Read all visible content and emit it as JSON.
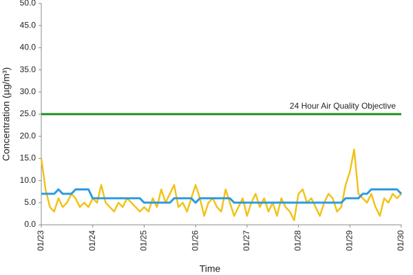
{
  "chart_data": {
    "type": "line",
    "x_label": "Time",
    "y_label": "Concentration (µg/m³)",
    "categories": [
      "01/23",
      null,
      null,
      null,
      null,
      null,
      null,
      null,
      null,
      null,
      null,
      null,
      "01/24",
      null,
      null,
      null,
      null,
      null,
      null,
      null,
      null,
      null,
      null,
      null,
      "01/25",
      null,
      null,
      null,
      null,
      null,
      null,
      null,
      null,
      null,
      null,
      null,
      "01/26",
      null,
      null,
      null,
      null,
      null,
      null,
      null,
      null,
      null,
      null,
      null,
      "01/27",
      null,
      null,
      null,
      null,
      null,
      null,
      null,
      null,
      null,
      null,
      null,
      "01/28",
      null,
      null,
      null,
      null,
      null,
      null,
      null,
      null,
      null,
      null,
      null,
      "01/29",
      null,
      null,
      null,
      null,
      null,
      null,
      null,
      null,
      null,
      null,
      null,
      "01/30"
    ],
    "series": [
      {
        "color": "#f2c218",
        "values": [
          15,
          8,
          4,
          3,
          6,
          4,
          5,
          7,
          6,
          4,
          5,
          4,
          6,
          5,
          9,
          5,
          4,
          3,
          5,
          4,
          6,
          5,
          4,
          3,
          4,
          3,
          6,
          4,
          8,
          5,
          7,
          9,
          4,
          5,
          3,
          6,
          9,
          6,
          2,
          5,
          6,
          4,
          3,
          8,
          5,
          2,
          4,
          6,
          2,
          5,
          7,
          4,
          6,
          3,
          5,
          2,
          6,
          4,
          3,
          1,
          7,
          8,
          5,
          6,
          4,
          2,
          5,
          7,
          6,
          3,
          4,
          9,
          12,
          17,
          7,
          6,
          5,
          7,
          4,
          2,
          6,
          5,
          7,
          6,
          7
        ]
      },
      {
        "color": "#2b9be0",
        "values": [
          7,
          7,
          7,
          7,
          8,
          7,
          7,
          7,
          8,
          8,
          8,
          8,
          6,
          6,
          6,
          6,
          6,
          6,
          6,
          6,
          6,
          6,
          6,
          6,
          5,
          5,
          5,
          5,
          5,
          5,
          5,
          6,
          6,
          6,
          6,
          6,
          5,
          6,
          6,
          6,
          6,
          6,
          6,
          6,
          6,
          5,
          5,
          5,
          5,
          5,
          5,
          5,
          5,
          5,
          5,
          5,
          5,
          5,
          5,
          5,
          5,
          5,
          5,
          5,
          5,
          5,
          5,
          5,
          5,
          5,
          5,
          6,
          6,
          6,
          6,
          7,
          7,
          8,
          8,
          8,
          8,
          8,
          8,
          8,
          7
        ]
      }
    ],
    "reference_line": {
      "value": 25,
      "label": "24 Hour Air Quality Objective",
      "color": "#1e8c1e"
    },
    "ylim": [
      0,
      50
    ],
    "yticks": [
      {
        "value": 0,
        "label": "0.0"
      },
      {
        "value": 5,
        "label": "5.0"
      },
      {
        "value": 10,
        "label": "10.0"
      },
      {
        "value": 15,
        "label": "15.0"
      },
      {
        "value": 20,
        "label": "20.0"
      },
      {
        "value": 25,
        "label": "25.0"
      },
      {
        "value": 30,
        "label": "30.0"
      },
      {
        "value": 35,
        "label": "35.0"
      },
      {
        "value": 40,
        "label": "40.0"
      },
      {
        "value": 45,
        "label": "45.0"
      },
      {
        "value": 50,
        "label": "50.0"
      }
    ],
    "grid": false
  }
}
